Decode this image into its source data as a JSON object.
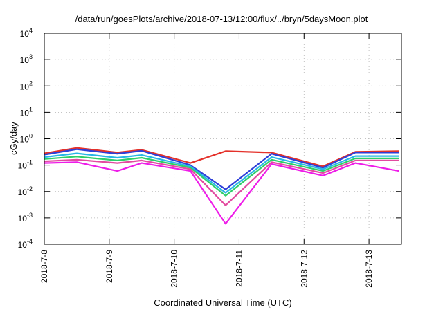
{
  "chart_data": {
    "type": "line",
    "title": "/data/run/goesPlots/archive/2018-07-13/12:00/flux/../bryn/5daysMoon.plot",
    "xlabel": "Coordinated Universal Time (UTC)",
    "ylabel": "cGy/day",
    "y_scale": "log",
    "ylim": [
      0.0001,
      10000
    ],
    "y_ticks": [
      {
        "value": 0.0001,
        "base": "10",
        "exp": "-4"
      },
      {
        "value": 0.001,
        "base": "10",
        "exp": "-3"
      },
      {
        "value": 0.01,
        "base": "10",
        "exp": "-2"
      },
      {
        "value": 0.1,
        "base": "10",
        "exp": "-1"
      },
      {
        "value": 1,
        "base": "10",
        "exp": "0"
      },
      {
        "value": 10,
        "base": "10",
        "exp": "1"
      },
      {
        "value": 100,
        "base": "10",
        "exp": "2"
      },
      {
        "value": 1000,
        "base": "10",
        "exp": "3"
      },
      {
        "value": 10000,
        "base": "10",
        "exp": "4"
      }
    ],
    "xlim": [
      "2018-07-08T00:00",
      "2018-07-13T12:00"
    ],
    "x_ticks": [
      "2018-7-8",
      "2018-7-9",
      "2018-7-10",
      "2018-7-11",
      "2018-7-12",
      "2018-7-13"
    ],
    "grid": true,
    "legend": "none",
    "series": [
      {
        "color": "#e4312a",
        "x": [
          "2018-07-08T00:00",
          "2018-07-08T12:00",
          "2018-07-09T03:00",
          "2018-07-09T12:00",
          "2018-07-10T06:00",
          "2018-07-10T19:00",
          "2018-07-11T12:00",
          "2018-07-12T07:00",
          "2018-07-12T19:00",
          "2018-07-13T11:00"
        ],
        "values": [
          0.28,
          0.45,
          0.3,
          0.38,
          0.12,
          0.34,
          0.3,
          0.09,
          0.32,
          0.34
        ]
      },
      {
        "color": "#2e3fd8",
        "x": [
          "2018-07-08T00:00",
          "2018-07-08T12:00",
          "2018-07-09T03:00",
          "2018-07-09T12:00",
          "2018-07-10T06:00",
          "2018-07-10T19:00",
          "2018-07-11T12:00",
          "2018-07-12T07:00",
          "2018-07-12T19:00",
          "2018-07-13T11:00"
        ],
        "values": [
          0.25,
          0.4,
          0.27,
          0.35,
          0.1,
          0.012,
          0.27,
          0.08,
          0.3,
          0.3
        ]
      },
      {
        "color": "#27b6e6",
        "x": [
          "2018-07-08T00:00",
          "2018-07-08T12:00",
          "2018-07-09T03:00",
          "2018-07-09T12:00",
          "2018-07-10T06:00",
          "2018-07-10T19:00",
          "2018-07-11T12:00",
          "2018-07-12T07:00",
          "2018-07-12T19:00",
          "2018-07-13T11:00"
        ],
        "values": [
          0.2,
          0.28,
          0.19,
          0.24,
          0.09,
          0.009,
          0.2,
          0.07,
          0.22,
          0.22
        ]
      },
      {
        "color": "#2fcf6a",
        "x": [
          "2018-07-08T00:00",
          "2018-07-08T12:00",
          "2018-07-09T03:00",
          "2018-07-09T12:00",
          "2018-07-10T06:00",
          "2018-07-10T19:00",
          "2018-07-11T12:00",
          "2018-07-12T07:00",
          "2018-07-12T19:00",
          "2018-07-13T11:00"
        ],
        "values": [
          0.17,
          0.21,
          0.15,
          0.19,
          0.08,
          0.007,
          0.16,
          0.06,
          0.18,
          0.18
        ]
      },
      {
        "color": "#e34aa0",
        "x": [
          "2018-07-08T00:00",
          "2018-07-08T12:00",
          "2018-07-09T03:00",
          "2018-07-09T12:00",
          "2018-07-10T06:00",
          "2018-07-10T19:00",
          "2018-07-11T12:00",
          "2018-07-12T07:00",
          "2018-07-12T19:00",
          "2018-07-13T11:00"
        ],
        "values": [
          0.14,
          0.16,
          0.12,
          0.15,
          0.07,
          0.003,
          0.13,
          0.05,
          0.15,
          0.15
        ]
      },
      {
        "color": "#ee1ce8",
        "x": [
          "2018-07-08T00:00",
          "2018-07-08T12:00",
          "2018-07-09T03:00",
          "2018-07-09T12:00",
          "2018-07-10T06:00",
          "2018-07-10T19:00",
          "2018-07-11T12:00",
          "2018-07-12T07:00",
          "2018-07-12T19:00",
          "2018-07-13T11:00"
        ],
        "values": [
          0.12,
          0.13,
          0.06,
          0.12,
          0.06,
          0.0006,
          0.11,
          0.04,
          0.12,
          0.06
        ]
      }
    ]
  }
}
